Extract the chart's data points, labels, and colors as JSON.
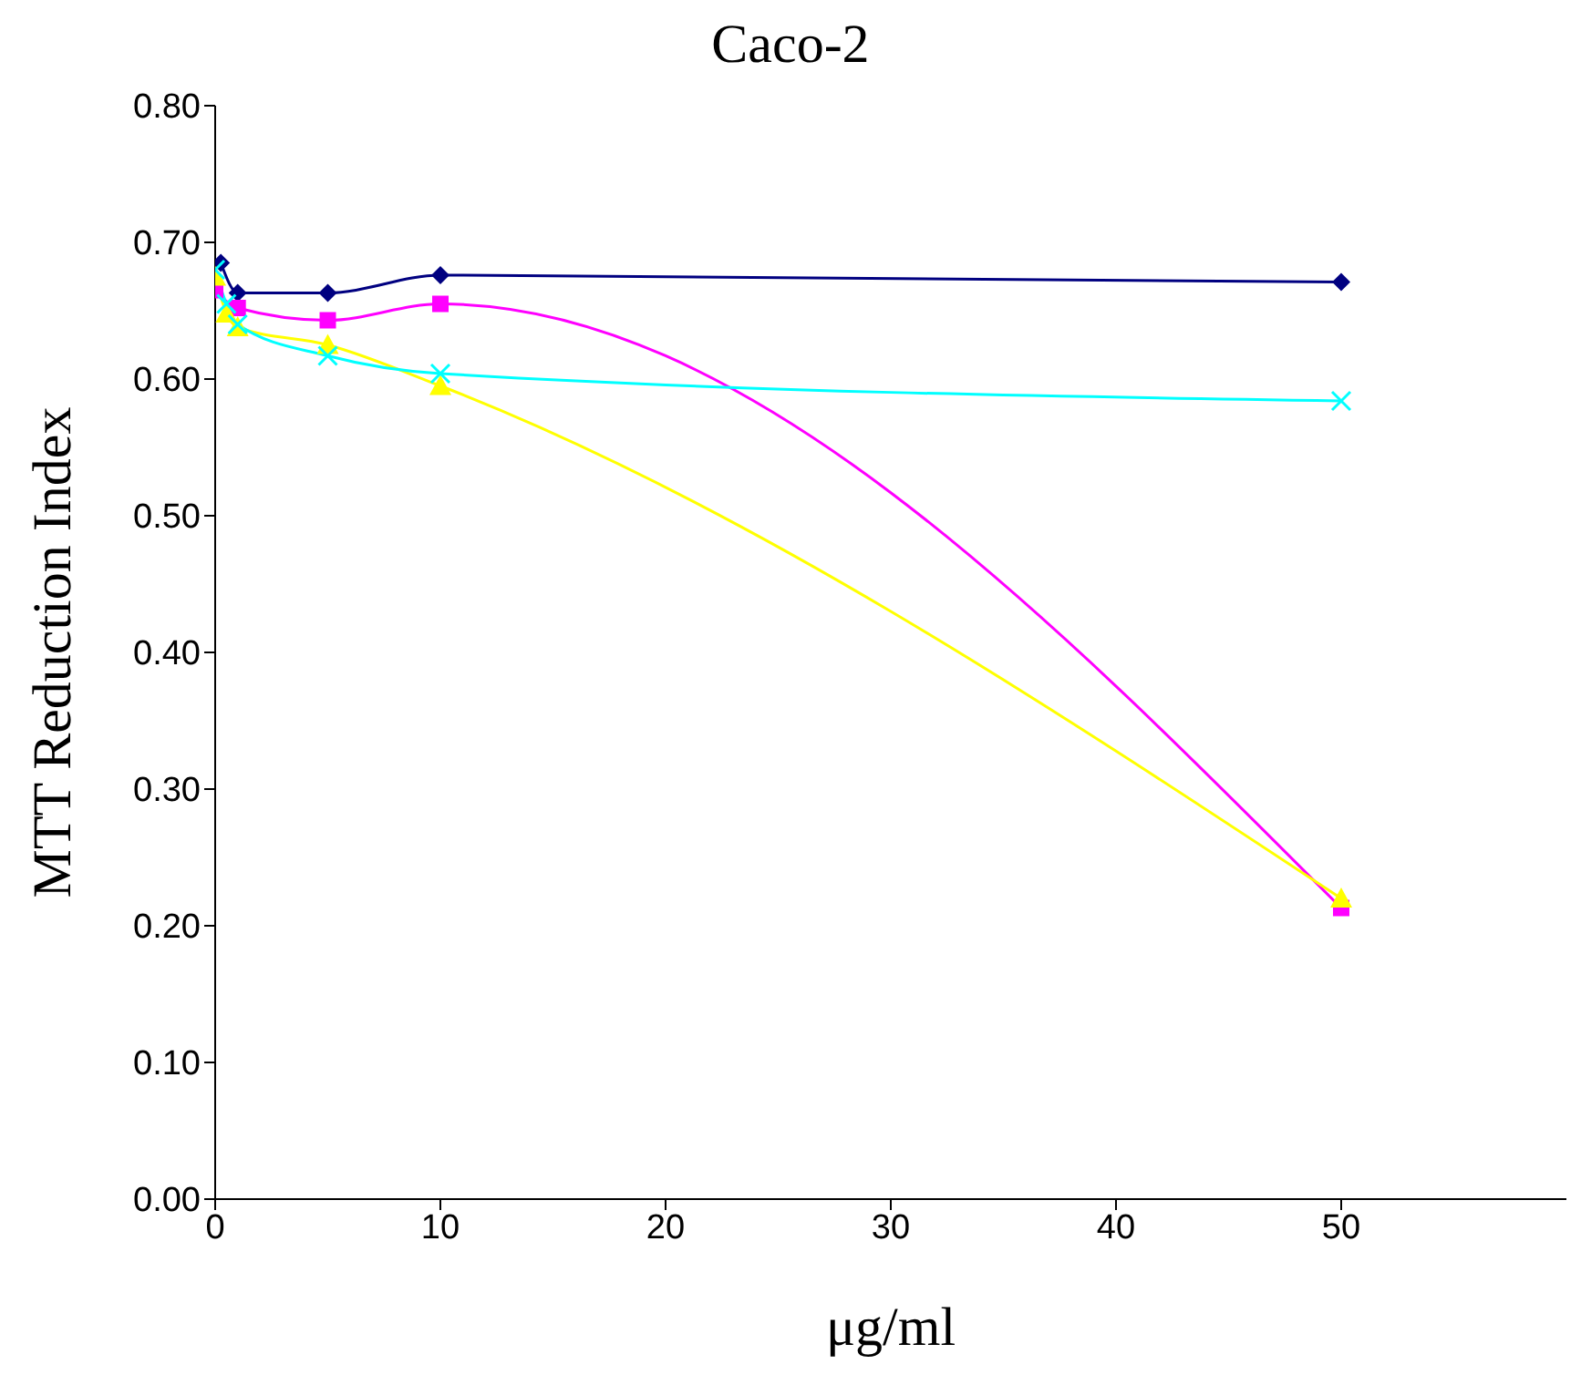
{
  "chart_data": {
    "type": "line",
    "title": "Caco-2",
    "xlabel": "μg/ml",
    "ylabel": "MTT Reduction  Index",
    "xlim": [
      0,
      60
    ],
    "xticks": [
      0,
      10,
      20,
      30,
      40,
      50
    ],
    "ylim": [
      0,
      0.8
    ],
    "yticks": [
      {
        "value": 0,
        "label": "0.00"
      },
      {
        "value": 0.1,
        "label": "0.10"
      },
      {
        "value": 0.2,
        "label": "0.20"
      },
      {
        "value": 0.3,
        "label": "0.30"
      },
      {
        "value": 0.4,
        "label": "0.40"
      },
      {
        "value": 0.5,
        "label": "0.50"
      },
      {
        "value": 0.6,
        "label": "0.60"
      },
      {
        "value": 0.7,
        "label": "0.70"
      },
      {
        "value": 0.8,
        "label": "0.80"
      }
    ],
    "grid": false,
    "legend": false,
    "line_style": "solid",
    "series": [
      {
        "color": "#000080",
        "marker": "diamond",
        "x": [
          0.25,
          1,
          5,
          10,
          50
        ],
        "values": [
          0.685,
          0.663,
          0.663,
          0.676,
          0.671
        ]
      },
      {
        "color": "#ff00ff",
        "marker": "square",
        "x": [
          0,
          1,
          5,
          10,
          50
        ],
        "values": [
          0.665,
          0.652,
          0.643,
          0.655,
          0.213
        ]
      },
      {
        "color": "#ffff00",
        "marker": "triangle",
        "x": [
          0,
          0.5,
          1,
          5,
          10,
          50
        ],
        "values": [
          0.675,
          0.648,
          0.638,
          0.625,
          0.595,
          0.22
        ]
      },
      {
        "color": "#00ffff",
        "marker": "cross",
        "x": [
          0,
          0.5,
          1,
          5,
          10,
          50
        ],
        "values": [
          0.68,
          0.655,
          0.64,
          0.617,
          0.604,
          0.584
        ]
      }
    ]
  }
}
